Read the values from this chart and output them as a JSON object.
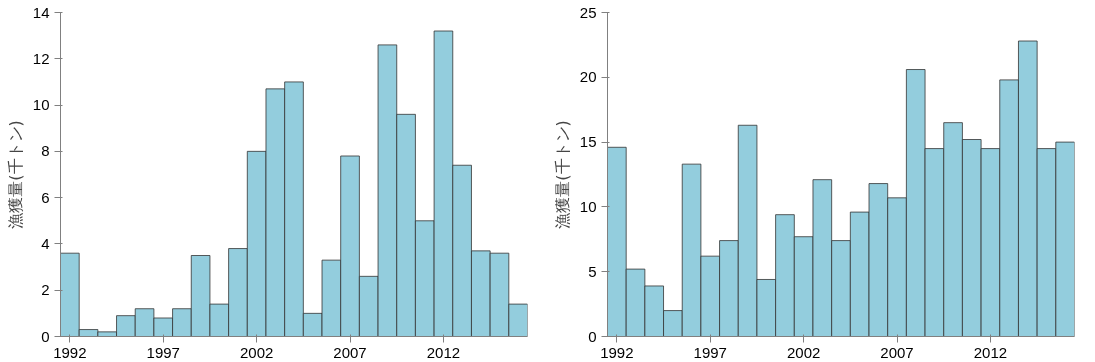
{
  "chart_data": [
    {
      "type": "bar",
      "ylabel": "漁獲量(千トン)",
      "x": [
        1992,
        1993,
        1994,
        1995,
        1996,
        1997,
        1998,
        1999,
        2000,
        2001,
        2002,
        2003,
        2004,
        2005,
        2006,
        2007,
        2008,
        2009,
        2010,
        2011,
        2012,
        2013,
        2014,
        2015,
        2016
      ],
      "xlim": [
        1991.5,
        2016.5
      ],
      "xticks": [
        1992,
        1997,
        2002,
        2007,
        2012
      ],
      "ylim": [
        0,
        14
      ],
      "yticks": [
        0,
        2,
        4,
        6,
        8,
        10,
        12,
        14
      ],
      "grid": false,
      "series": [
        {
          "color": "#93cddd",
          "values": [
            3.6,
            0.3,
            0.2,
            0.9,
            1.2,
            0.8,
            1.2,
            3.5,
            1.4,
            3.8,
            8.0,
            10.7,
            11.0,
            1.0,
            3.3,
            7.8,
            2.6,
            12.6,
            9.6,
            5.0,
            13.2,
            7.4,
            3.7,
            3.6,
            1.4
          ]
        }
      ]
    },
    {
      "type": "bar",
      "ylabel": "漁獲量(千トン)",
      "x": [
        1992,
        1993,
        1994,
        1995,
        1996,
        1997,
        1998,
        1999,
        2000,
        2001,
        2002,
        2003,
        2004,
        2005,
        2006,
        2007,
        2008,
        2009,
        2010,
        2011,
        2012,
        2013,
        2014,
        2015,
        2016
      ],
      "xlim": [
        1991.5,
        2016.5
      ],
      "xticks": [
        1992,
        1997,
        2002,
        2007,
        2012
      ],
      "ylim": [
        0,
        25
      ],
      "yticks": [
        0,
        5,
        10,
        15,
        20,
        25
      ],
      "grid": false,
      "series": [
        {
          "color": "#93cddd",
          "values": [
            14.6,
            5.2,
            3.9,
            2.0,
            13.3,
            6.2,
            7.4,
            16.3,
            4.4,
            9.4,
            7.7,
            12.1,
            7.4,
            9.6,
            11.8,
            10.7,
            20.6,
            14.5,
            16.5,
            15.2,
            14.5,
            19.8,
            22.8,
            14.5,
            15.0
          ]
        }
      ]
    }
  ]
}
